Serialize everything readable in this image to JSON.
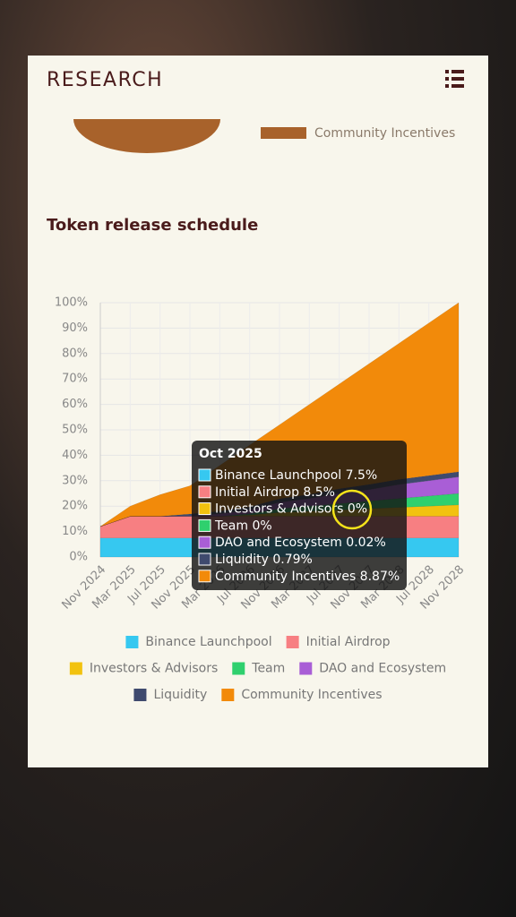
{
  "header": {
    "title": "RESEARCH"
  },
  "pie_legend": {
    "label": "Community Incentives",
    "color": "#a8622b"
  },
  "chart_data": {
    "type": "stacked-area",
    "title": "Token release schedule",
    "categories": [
      "Nov 2024",
      "Mar 2025",
      "Jul 2025",
      "Nov 2025",
      "Mar 2026",
      "Jul 2026",
      "Nov 2026",
      "Mar 2027",
      "Jul 2027",
      "Nov 2027",
      "Mar 2028",
      "Jul 2028",
      "Nov 2028"
    ],
    "series": [
      {
        "name": "Binance Launchpool",
        "color": "#36c8f0",
        "values": [
          7.5,
          7.5,
          7.5,
          7.5,
          7.5,
          7.5,
          7.5,
          7.5,
          7.5,
          7.5,
          7.5,
          7.5,
          7.5
        ]
      },
      {
        "name": "Initial Airdrop",
        "color": "#f77f82",
        "values": [
          4.5,
          8.5,
          8.5,
          8.5,
          8.5,
          8.5,
          8.5,
          8.5,
          8.5,
          8.5,
          8.5,
          8.5,
          8.5
        ]
      },
      {
        "name": "Investors & Advisors",
        "color": "#f2c20f",
        "values": [
          0,
          0,
          0,
          0,
          0,
          0.5,
          1.5,
          2,
          2.5,
          3,
          3.5,
          4,
          4.5
        ]
      },
      {
        "name": "Team",
        "color": "#2fd06e",
        "values": [
          0,
          0,
          0,
          0,
          0,
          0.5,
          1.5,
          2,
          2.5,
          3,
          3.5,
          4,
          4.5
        ]
      },
      {
        "name": "DAO and Ecosystem",
        "color": "#a95ed6",
        "values": [
          0,
          0,
          0,
          0.1,
          1,
          1.5,
          2.5,
          3,
          4,
          4.5,
          5.5,
          6,
          6.5
        ]
      },
      {
        "name": "Liquidity",
        "color": "#3f4a6e",
        "values": [
          0,
          0,
          0,
          0.8,
          1,
          1.2,
          1.4,
          1.6,
          1.8,
          2,
          2,
          2,
          2
        ]
      },
      {
        "name": "Community Incentives",
        "color": "#f28a0a",
        "values": [
          0,
          4,
          8.5,
          11.1,
          18,
          24.3,
          29.1,
          35.4,
          41.2,
          47.5,
          53.5,
          60,
          66.5
        ]
      }
    ],
    "ylim": [
      0,
      100
    ],
    "yticks": [
      {
        "value": 0,
        "label": "0%"
      },
      {
        "value": 10,
        "label": "10%"
      },
      {
        "value": 20,
        "label": "20%"
      },
      {
        "value": 30,
        "label": "30%"
      },
      {
        "value": 40,
        "label": "40%"
      },
      {
        "value": 50,
        "label": "50%"
      },
      {
        "value": 60,
        "label": "60%"
      },
      {
        "value": 70,
        "label": "70%"
      },
      {
        "value": 80,
        "label": "80%"
      },
      {
        "value": 90,
        "label": "90%"
      },
      {
        "value": 100,
        "label": "100%"
      }
    ],
    "grid": true,
    "tooltip": {
      "title": "Oct 2025",
      "lines": [
        "Binance Launchpool 7.5%",
        "Initial Airdrop 8.5%",
        "Investors & Advisors 0%",
        "Team 0%",
        "DAO and Ecosystem 0.02%",
        "Liquidity 0.79%",
        "Community Incentives 8.87%"
      ]
    }
  }
}
